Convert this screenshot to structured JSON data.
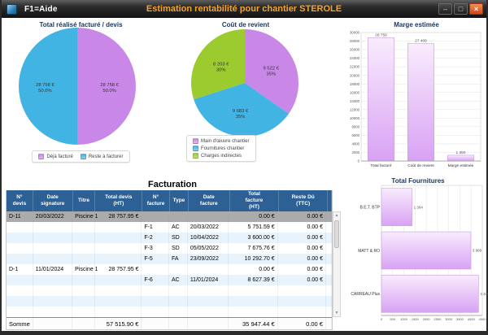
{
  "window": {
    "help_label": "F1=Aide",
    "title": "Estimation rentabilité pour chantier STEROLE",
    "minimize_glyph": "–",
    "maximize_glyph": "□",
    "close_glyph": "×"
  },
  "colors": {
    "title_text": "#f5a22d",
    "slice_purple": "#c987e8",
    "slice_blue": "#42b4e4",
    "slice_green": "#9ccb2f",
    "bar_fill_top": "#f9ecfd",
    "bar_fill_bottom": "#d8a2f4",
    "bar_border": "#c79be0",
    "table_header_bg": "#2d6095",
    "row_alt_bg": "#e8f3fb",
    "row_selected_bg": "#ababab"
  },
  "chart_data": [
    {
      "id": "pie-devis",
      "type": "pie",
      "title": "Total réalisé facturé / devis",
      "legend_position": "bottom",
      "slices": [
        {
          "label": "Déjà facturé",
          "value": 28758,
          "value_label": "28 758 €",
          "pct_label": "50.0%",
          "color_key": "slice_purple"
        },
        {
          "label": "Reste à facturer",
          "value": 28758,
          "value_label": "28 758 €",
          "pct_label": "50.0%",
          "color_key": "slice_blue"
        }
      ]
    },
    {
      "id": "pie-cout-revient",
      "type": "pie",
      "title": "Coût de revient",
      "legend_position": "bottom-left",
      "slices": [
        {
          "label": "Main d'œuvre chantier",
          "value": 9522,
          "value_label": "9 522 €",
          "pct_label": "35%",
          "color_key": "slice_purple"
        },
        {
          "label": "Fournitures chantier",
          "value": 9683,
          "value_label": "9 683 €",
          "pct_label": "35%",
          "color_key": "slice_blue"
        },
        {
          "label": "Charges indirectes",
          "value": 8203,
          "value_label": "8 203 €",
          "pct_label": "30%",
          "color_key": "slice_green"
        }
      ]
    },
    {
      "id": "bar-marge",
      "type": "bar",
      "title": "Marge estimée",
      "categories": [
        "Total facturé",
        "Coût de revient",
        "Marge estimée"
      ],
      "values": [
        28758,
        27408,
        1350
      ],
      "value_labels": [
        "28 758",
        "27 408",
        "1 350"
      ],
      "ylim": [
        0,
        30000
      ],
      "ytick_step": 2000,
      "grid": true
    },
    {
      "id": "hbar-fournitures",
      "type": "hbar",
      "title": "Total Fournitures",
      "categories": [
        "B.E.T. BTP",
        "MATT & RO",
        "CARREAU Plus"
      ],
      "values": [
        1364,
        3989,
        4330
      ],
      "value_labels": [
        "1 364",
        "3 989",
        "4 330"
      ],
      "xlim": [
        0,
        4500
      ],
      "xtick_step": 500,
      "grid": true
    }
  ],
  "table": {
    "title": "Facturation",
    "headers": [
      "N°\ndevis",
      "Date\nsignature",
      "Titre",
      "Total devis\n(HT)",
      "N°\nfacture",
      "Type",
      "Date\nfacture",
      "Total\nfacture\n(HT)",
      "Reste Dû\n(TTC)"
    ],
    "rows": [
      {
        "selected": true,
        "cells": [
          "D-11",
          "20/03/2022",
          "Piscine 1",
          "28 757.95 €",
          "",
          "",
          "",
          "0.00 €",
          "0.00 €"
        ]
      },
      {
        "selected": false,
        "cells": [
          "",
          "",
          "",
          "",
          "F-1",
          "AC",
          "20/03/2022",
          "5 751.59 €",
          "0.00 €"
        ]
      },
      {
        "selected": false,
        "cells": [
          "",
          "",
          "",
          "",
          "F-2",
          "SD",
          "10/04/2022",
          "3 600.00 €",
          "0.00 €"
        ]
      },
      {
        "selected": false,
        "cells": [
          "",
          "",
          "",
          "",
          "F-3",
          "SD",
          "05/05/2022",
          "7 675.76 €",
          "0.00 €"
        ]
      },
      {
        "selected": false,
        "cells": [
          "",
          "",
          "",
          "",
          "F-5",
          "FA",
          "23/09/2022",
          "10 292.70 €",
          "0.00 €"
        ]
      },
      {
        "selected": false,
        "cells": [
          "D-1",
          "11/01/2024",
          "Piscine 1",
          "28 757.95 €",
          "",
          "",
          "",
          "0.00 €",
          "0.00 €"
        ]
      },
      {
        "selected": false,
        "cells": [
          "",
          "",
          "",
          "",
          "F-6",
          "AC",
          "11/01/2024",
          "8 627.39 €",
          "0.00 €"
        ]
      },
      {
        "selected": false,
        "cells": [
          "",
          "",
          "",
          "",
          "",
          "",
          "",
          "",
          ""
        ]
      },
      {
        "selected": false,
        "cells": [
          "",
          "",
          "",
          "",
          "",
          "",
          "",
          "",
          ""
        ]
      },
      {
        "selected": false,
        "cells": [
          "",
          "",
          "",
          "",
          "",
          "",
          "",
          "",
          ""
        ]
      }
    ],
    "footer": {
      "cells": [
        "Somme",
        "",
        "",
        "57 515.90 €",
        "",
        "",
        "",
        "35 947.44 €",
        "0.00 €"
      ]
    }
  }
}
